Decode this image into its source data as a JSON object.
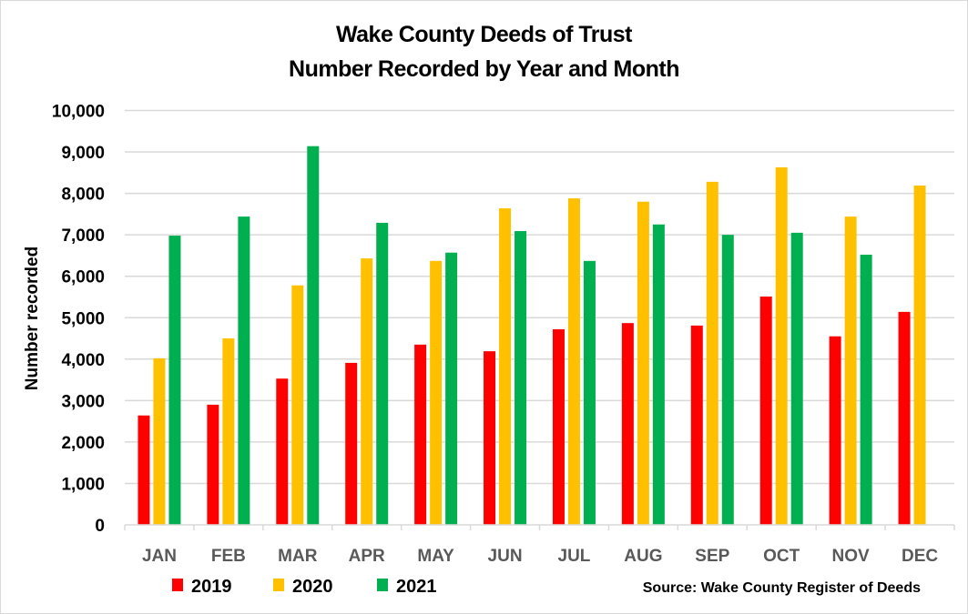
{
  "chart_data": {
    "type": "bar",
    "title": "Wake County Deeds of Trust",
    "subtitle": "Number Recorded by Year and Month",
    "xlabel": "",
    "ylabel": "Number recorded",
    "ylim": [
      0,
      10000
    ],
    "yticks": [
      0,
      1000,
      2000,
      3000,
      4000,
      5000,
      6000,
      7000,
      8000,
      9000,
      10000
    ],
    "ytick_labels": [
      "0",
      "1,000",
      "2,000",
      "3,000",
      "4,000",
      "5,000",
      "6,000",
      "7,000",
      "8,000",
      "9,000",
      "10,000"
    ],
    "grid": true,
    "legend_position": "bottom-left",
    "categories": [
      "JAN",
      "FEB",
      "MAR",
      "APR",
      "MAY",
      "JUN",
      "JUL",
      "AUG",
      "SEP",
      "OCT",
      "NOV",
      "DEC"
    ],
    "series": [
      {
        "name": "2019",
        "color": "#ff0000",
        "values": [
          2640,
          2900,
          3530,
          3910,
          4350,
          4190,
          4720,
          4870,
          4810,
          5510,
          4550,
          5140
        ]
      },
      {
        "name": "2020",
        "color": "#ffc000",
        "values": [
          4020,
          4500,
          5780,
          6430,
          6370,
          7640,
          7880,
          7800,
          8280,
          8630,
          7440,
          8190
        ]
      },
      {
        "name": "2021",
        "color": "#00b050",
        "values": [
          6980,
          7440,
          9140,
          7290,
          6570,
          7090,
          6370,
          7250,
          7000,
          7050,
          6520,
          null
        ]
      }
    ],
    "annotation": "Source: Wake County Register of Deeds"
  }
}
